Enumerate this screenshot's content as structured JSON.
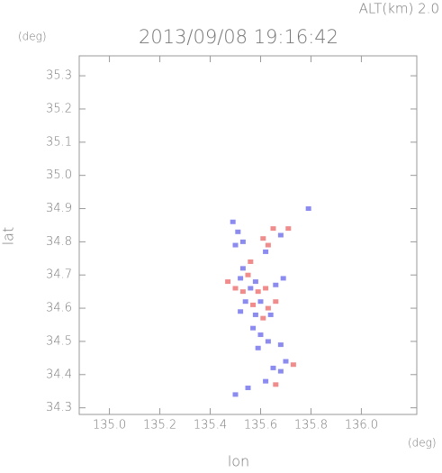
{
  "chart_data": {
    "type": "scatter",
    "title": "2013/09/08 19:16:42",
    "subtitle": "ALT(km) 2.0",
    "y_unit": "(deg)",
    "x_unit": "(deg)",
    "x_label": "lon",
    "y_label": "lat",
    "xlim": [
      134.88,
      136.22
    ],
    "ylim": [
      34.28,
      35.36
    ],
    "xticks": [
      {
        "value": 135.0,
        "label": "135.0"
      },
      135.2,
      135.4,
      135.6,
      135.8,
      {
        "value": 136.0,
        "label": "136.0"
      }
    ],
    "yticks": [
      34.3,
      34.4,
      34.5,
      34.6,
      34.7,
      34.8,
      34.9,
      {
        "value": 35.0,
        "label": "35.0"
      },
      35.1,
      35.2,
      35.3
    ],
    "x": [
      135.49,
      135.51,
      135.53,
      135.5,
      135.61,
      135.63,
      135.62,
      135.65,
      135.71,
      135.68,
      135.79,
      135.53,
      135.56,
      135.52,
      135.55,
      135.58,
      135.5,
      135.53,
      135.56,
      135.59,
      135.62,
      135.66,
      135.69,
      135.54,
      135.57,
      135.6,
      135.63,
      135.66,
      135.52,
      135.58,
      135.61,
      135.64,
      135.57,
      135.6,
      135.63,
      135.68,
      135.59,
      135.65,
      135.68,
      135.62,
      135.66,
      135.73,
      135.7,
      135.55,
      135.5,
      135.47
    ],
    "values": [
      34.86,
      34.83,
      34.8,
      34.79,
      34.81,
      34.79,
      34.77,
      34.84,
      34.84,
      34.82,
      34.9,
      34.72,
      34.74,
      34.69,
      34.7,
      34.68,
      34.66,
      34.65,
      34.66,
      34.65,
      34.66,
      34.67,
      34.69,
      34.62,
      34.61,
      34.62,
      34.6,
      34.62,
      34.59,
      34.58,
      34.57,
      34.58,
      34.54,
      34.52,
      34.5,
      34.49,
      34.48,
      34.42,
      34.41,
      34.38,
      34.37,
      34.43,
      34.44,
      34.36,
      34.34,
      34.68
    ],
    "colors": [
      "#8c8cf0",
      "#8c8cf0",
      "#8c8cf0",
      "#8c8cf0",
      "#f08c8c",
      "#f08c8c",
      "#8c8cf0",
      "#f08c8c",
      "#f08c8c",
      "#8c8cf0",
      "#8c8cf0",
      "#8c8cf0",
      "#f08c8c",
      "#8c8cf0",
      "#f08c8c",
      "#8c8cf0",
      "#f08c8c",
      "#f08c8c",
      "#8c8cf0",
      "#f08c8c",
      "#f08c8c",
      "#8c8cf0",
      "#8c8cf0",
      "#8c8cf0",
      "#f08c8c",
      "#8c8cf0",
      "#f08c8c",
      "#f08c8c",
      "#8c8cf0",
      "#8c8cf0",
      "#f08c8c",
      "#8c8cf0",
      "#8c8cf0",
      "#8c8cf0",
      "#8c8cf0",
      "#8c8cf0",
      "#8c8cf0",
      "#8c8cf0",
      "#8c8cf0",
      "#8c8cf0",
      "#f08c8c",
      "#f08c8c",
      "#8c8cf0",
      "#8c8cf0",
      "#8c8cf0",
      "#f08c8c"
    ]
  }
}
